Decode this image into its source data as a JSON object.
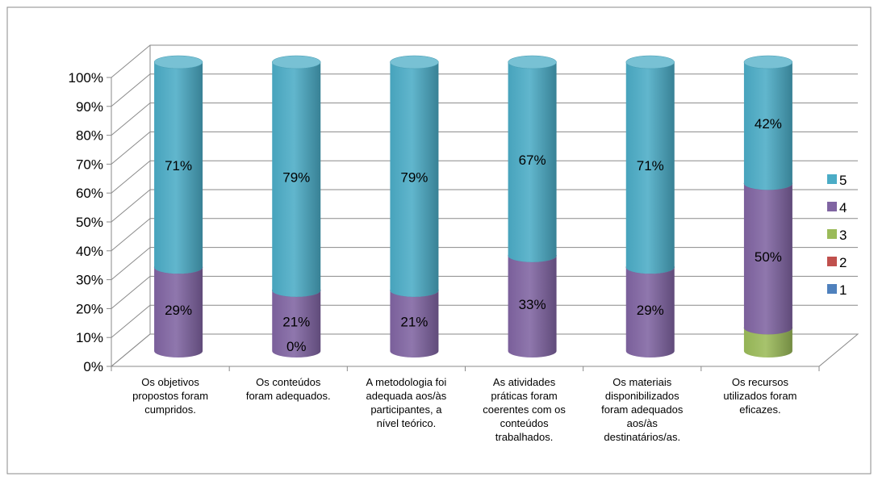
{
  "chart_data": {
    "type": "bar",
    "stacked": true,
    "percent": true,
    "three_d": true,
    "bar_shape": "cylinder",
    "title": "",
    "xlabel": "",
    "ylabel": "",
    "ylim": [
      0,
      100
    ],
    "y_ticks": [
      "0%",
      "10%",
      "20%",
      "30%",
      "40%",
      "50%",
      "60%",
      "70%",
      "80%",
      "90%",
      "100%"
    ],
    "grid": true,
    "legend_position": "right",
    "categories": [
      "Os objetivos propostos foram cumpridos.",
      "Os conteúdos foram adequados.",
      "A metodologia foi adequada aos/às participantes, a nível teórico.",
      "As atividades práticas foram coerentes com os conteúdos trabalhados.",
      "Os materiais disponibilizados foram adequados aos/às destinatários/as.",
      "Os recursos utilizados foram eficazes."
    ],
    "category_lines": [
      [
        "Os objetivos",
        "propostos foram",
        "cumpridos."
      ],
      [
        "Os conteúdos",
        "foram adequados."
      ],
      [
        "A metodologia foi",
        "adequada aos/às",
        "participantes, a",
        "nível teórico."
      ],
      [
        "As atividades",
        "práticas foram",
        "coerentes com os",
        "conteúdos",
        "trabalhados."
      ],
      [
        "Os materiais",
        "disponibilizados",
        "foram adequados",
        "aos/às",
        "destinatários/as."
      ],
      [
        "Os recursos",
        "utilizados foram",
        "eficazes."
      ]
    ],
    "series": [
      {
        "name": "1",
        "color": "#4f81bd",
        "values": [
          0,
          0,
          0,
          0,
          0,
          0
        ],
        "labels": [
          "",
          "",
          "",
          "",
          "",
          ""
        ]
      },
      {
        "name": "2",
        "color": "#c0504d",
        "values": [
          0,
          0,
          0,
          0,
          0,
          0
        ],
        "labels": [
          "",
          "",
          "",
          "",
          "",
          ""
        ]
      },
      {
        "name": "3",
        "color": "#9bbb59",
        "values": [
          0,
          0,
          0,
          0,
          0,
          8
        ],
        "labels": [
          "",
          "0%",
          "",
          "",
          "",
          ""
        ]
      },
      {
        "name": "4",
        "color": "#8064a2",
        "values": [
          29,
          21,
          21,
          33,
          29,
          50
        ],
        "labels": [
          "29%",
          "21%",
          "21%",
          "33%",
          "29%",
          "50%"
        ]
      },
      {
        "name": "5",
        "color": "#4bacc6",
        "values": [
          71,
          79,
          79,
          67,
          71,
          42
        ],
        "labels": [
          "71%",
          "79%",
          "79%",
          "67%",
          "71%",
          "42%"
        ]
      }
    ]
  }
}
